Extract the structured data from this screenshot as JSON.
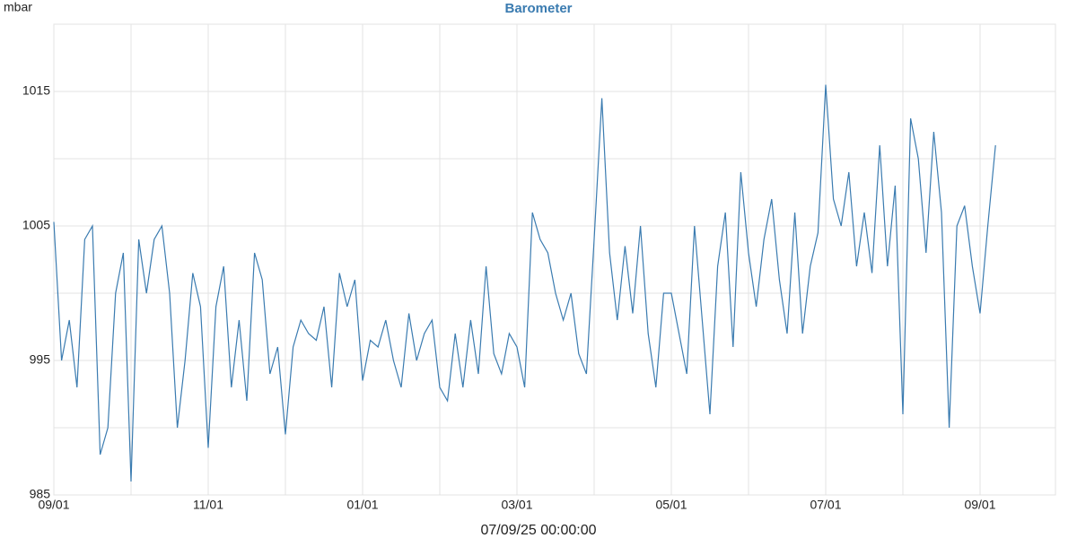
{
  "chart_data": {
    "type": "line",
    "title": "Barometer",
    "y_label": "mbar",
    "x_label": "07/09/25 00:00:00",
    "color": "#3a7bb0",
    "grid": true,
    "categories": [
      "09/01",
      null,
      null,
      null,
      null,
      null,
      null,
      null,
      null,
      null,
      null,
      null,
      null,
      null,
      null,
      null,
      null,
      null,
      null,
      null,
      "11/01",
      null,
      null,
      null,
      null,
      null,
      null,
      null,
      null,
      null,
      null,
      null,
      null,
      null,
      null,
      null,
      null,
      null,
      null,
      null,
      "01/01",
      null,
      null,
      null,
      null,
      null,
      null,
      null,
      null,
      null,
      null,
      null,
      null,
      null,
      null,
      null,
      null,
      null,
      null,
      null,
      "03/01",
      null,
      null,
      null,
      null,
      null,
      null,
      null,
      null,
      null,
      null,
      null,
      null,
      null,
      null,
      null,
      null,
      null,
      null,
      null,
      "05/01",
      null,
      null,
      null,
      null,
      null,
      null,
      null,
      null,
      null,
      null,
      null,
      null,
      null,
      null,
      null,
      null,
      null,
      null,
      null,
      "07/01",
      null,
      null,
      null,
      null,
      null,
      null,
      null,
      null,
      null,
      null,
      null,
      null,
      null,
      null,
      null,
      null,
      null,
      null,
      null,
      "09/01",
      null,
      null
    ],
    "values": [
      1005.3,
      995,
      998,
      993,
      1004,
      1005,
      988,
      990,
      1000,
      1003,
      986,
      1004,
      1000,
      1004,
      1005,
      1000,
      990,
      995,
      1001.5,
      999,
      988.5,
      999,
      1002,
      993,
      998,
      992,
      1003,
      1001,
      994,
      996,
      989.5,
      996,
      998,
      997,
      996.5,
      999,
      993,
      1001.5,
      999,
      1001,
      993.5,
      996.5,
      996,
      998,
      995,
      993,
      998.5,
      995,
      997,
      998,
      993,
      992,
      997,
      993,
      998,
      994,
      1002,
      995.5,
      994,
      997,
      996,
      993,
      1006,
      1004,
      1003,
      1000,
      998,
      1000,
      995.5,
      994,
      1004,
      1014.5,
      1003,
      998,
      1003.5,
      998.5,
      1005,
      997,
      993,
      1000,
      1000,
      997,
      994,
      1005,
      998,
      991,
      1002,
      1006,
      996,
      1009,
      1003,
      999,
      1004,
      1007,
      1001,
      997,
      1006,
      997,
      1002,
      1004.5,
      1015.5,
      1007,
      1005,
      1009,
      1002,
      1006,
      1001.5,
      1011,
      1002,
      1008,
      991,
      1013,
      1010,
      1003,
      1012,
      1006,
      990,
      1005,
      1006.5,
      1002,
      998.5,
      1005,
      1011
    ],
    "ylim": [
      985,
      1020
    ],
    "yticks": [
      985,
      995,
      1005,
      1015
    ]
  }
}
